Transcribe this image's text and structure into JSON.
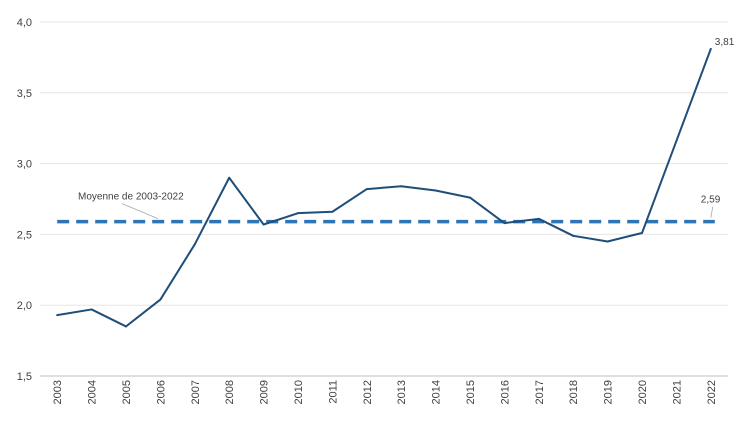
{
  "chart_data": {
    "type": "line",
    "title": "",
    "xlabel": "",
    "ylabel": "",
    "x": [
      "2003",
      "2004",
      "2005",
      "2006",
      "2007",
      "2008",
      "2009",
      "2010",
      "2011",
      "2012",
      "2013",
      "2014",
      "2015",
      "2016",
      "2017",
      "2018",
      "2019",
      "2020",
      "2021",
      "2022"
    ],
    "series": [
      {
        "values": [
          1.93,
          1.97,
          1.85,
          2.04,
          2.43,
          2.9,
          2.57,
          2.65,
          2.66,
          2.82,
          2.84,
          2.81,
          2.76,
          2.58,
          2.61,
          2.49,
          2.45,
          2.51,
          3.16,
          3.81
        ],
        "color": "#1f4e79"
      }
    ],
    "average": {
      "label": "Moyenne de 2003-2022",
      "value": 2.59,
      "value_label": "2,59",
      "color": "#2e75b6",
      "style": "dashed"
    },
    "last_value_label": "3,81",
    "ylim": [
      1.5,
      4.0
    ],
    "yticks": [
      "1,5",
      "2,0",
      "2,5",
      "3,0",
      "3,5",
      "4,0"
    ],
    "ytick_values": [
      1.5,
      2.0,
      2.5,
      3.0,
      3.5,
      4.0
    ],
    "grid": "horizontal",
    "legend": "none"
  }
}
